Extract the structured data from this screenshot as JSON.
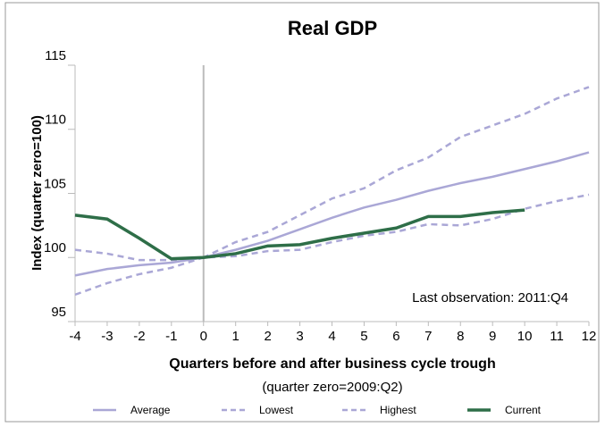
{
  "chart_data": {
    "type": "line",
    "title": "Real GDP",
    "xlabel": "Quarters before and after business cycle trough",
    "xlabel_note": "(quarter zero=2009:Q2)",
    "ylabel": "Index (quarter zero=100)",
    "annotation": "Last observation: 2011:Q4",
    "x": [
      -4,
      -3,
      -2,
      -1,
      0,
      1,
      2,
      3,
      4,
      5,
      6,
      7,
      8,
      9,
      10,
      11,
      12
    ],
    "xlim": [
      -4,
      12
    ],
    "xticks": [
      -4,
      -3,
      -2,
      -1,
      0,
      1,
      2,
      3,
      4,
      5,
      6,
      7,
      8,
      9,
      10,
      11,
      12
    ],
    "ylim": [
      95,
      115
    ],
    "yticks": [
      95,
      100,
      105,
      110,
      115
    ],
    "vline": 0,
    "series": [
      {
        "name": "Average",
        "color": "#aaa7d6",
        "dash": false,
        "values": [
          98.6,
          99.1,
          99.4,
          99.6,
          100,
          100.6,
          101.3,
          102.2,
          103.1,
          103.9,
          104.5,
          105.2,
          105.8,
          106.3,
          106.9,
          107.5,
          108.2
        ]
      },
      {
        "name": "Lowest",
        "color": "#aaa7d6",
        "dash": true,
        "values": [
          97.1,
          98.0,
          98.7,
          99.2,
          100,
          100.1,
          100.5,
          100.6,
          101.2,
          101.7,
          102.0,
          102.6,
          102.5,
          103.0,
          103.8,
          104.4,
          104.9
        ]
      },
      {
        "name": "Highest",
        "color": "#aaa7d6",
        "dash": true,
        "values": [
          100.6,
          100.3,
          99.8,
          99.8,
          100,
          101.2,
          102.0,
          103.3,
          104.6,
          105.4,
          106.8,
          107.8,
          109.4,
          110.3,
          111.2,
          112.4,
          113.3
        ]
      },
      {
        "name": "Current",
        "color": "#2e6e48",
        "dash": false,
        "values": [
          103.3,
          103.0,
          101.5,
          99.9,
          100,
          100.3,
          100.9,
          101.0,
          101.5,
          101.9,
          102.3,
          103.2,
          103.2,
          103.5,
          103.7,
          null,
          null
        ]
      }
    ]
  }
}
